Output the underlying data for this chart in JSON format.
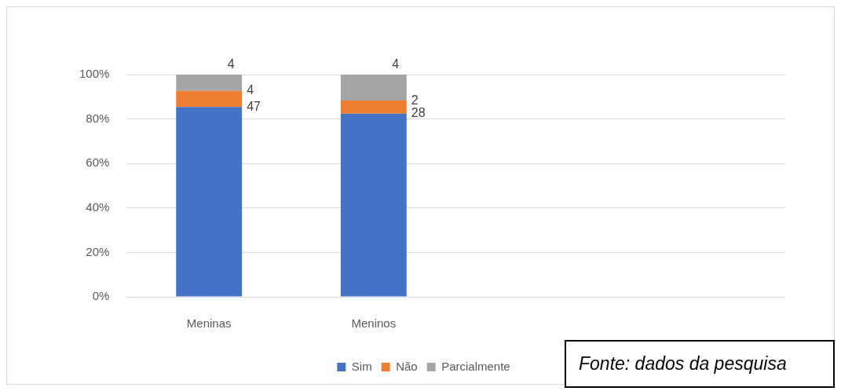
{
  "chart_data": {
    "type": "bar",
    "stacked": true,
    "categories": [
      "Meninas",
      "Meninos",
      null,
      null
    ],
    "series": [
      {
        "name": "Sim",
        "color": "#4472c4",
        "values": [
          85.4,
          82.4,
          null,
          null
        ]
      },
      {
        "name": "Não",
        "color": "#ed7d31",
        "values": [
          7.3,
          5.9,
          null,
          null
        ]
      },
      {
        "name": "Parcialmente",
        "color": "#a5a5a5",
        "values": [
          7.3,
          11.7,
          null,
          null
        ]
      }
    ],
    "ylim": [
      0,
      100
    ],
    "yticks": [
      {
        "value": 0,
        "label": "0%"
      },
      {
        "value": 20,
        "label": "20%"
      },
      {
        "value": 40,
        "label": "40%"
      },
      {
        "value": 60,
        "label": "60%"
      },
      {
        "value": 80,
        "label": "80%"
      },
      {
        "value": 100,
        "label": "100%"
      }
    ],
    "grid": "y",
    "legend": "bottom",
    "annotations": [
      {
        "text": "4",
        "x": "Meninas",
        "y": 100
      },
      {
        "text": "4",
        "x": "Meninas",
        "y": 92.7
      },
      {
        "text": "47",
        "x": "Meninas",
        "y": 85.4
      },
      {
        "text": "4",
        "x": "Meninos",
        "y": 100
      },
      {
        "text": "2",
        "x": "Meninos",
        "y": 88.3
      },
      {
        "text": "28",
        "x": "Meninos",
        "y": 82.4
      },
      "Fonte: dados da pesquisa"
    ]
  }
}
